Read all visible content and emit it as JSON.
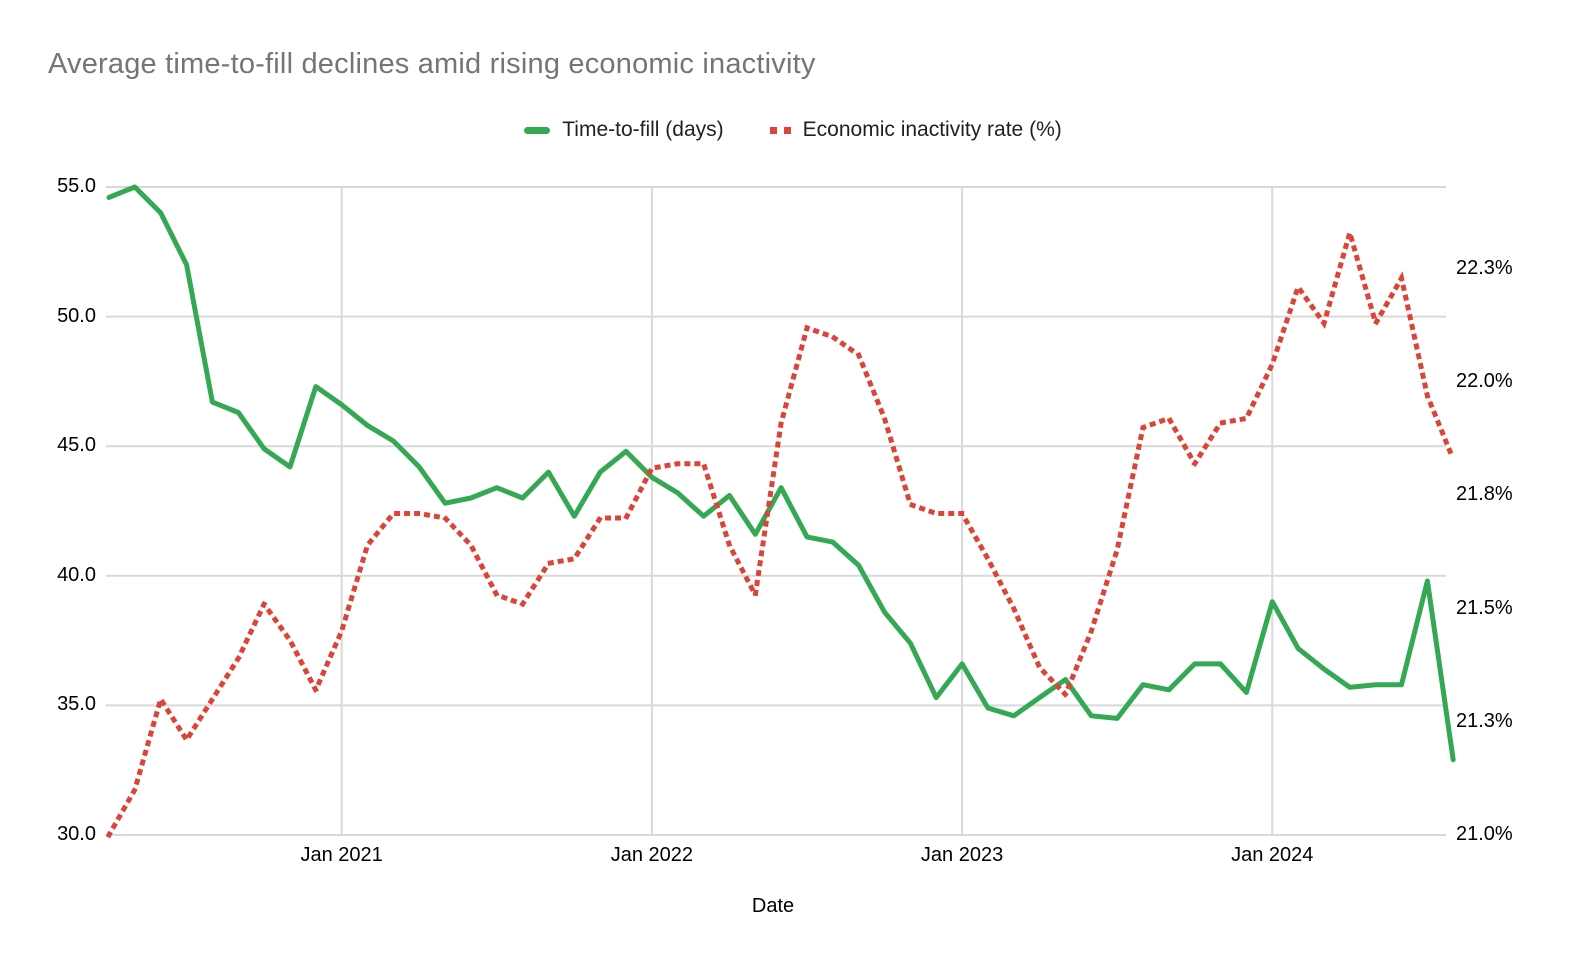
{
  "title": "Average time-to-fill declines amid rising economic inactivity",
  "legend": [
    {
      "label": "Time-to-fill (days)",
      "style": "solid",
      "color": "#34A853"
    },
    {
      "label": "Economic inactivity rate (%)",
      "style": "dotted",
      "color": "#DB4437"
    }
  ],
  "x_axis": {
    "title": "Date",
    "tick_labels": [
      "Jan 2021",
      "Jan 2022",
      "Jan 2023",
      "Jan 2024"
    ]
  },
  "left_axis": {
    "tick_labels": [
      "55.0",
      "50.0",
      "45.0",
      "40.0",
      "35.0",
      "30.0"
    ],
    "tick_values": [
      55.0,
      50.0,
      45.0,
      40.0,
      35.0,
      30.0
    ],
    "min": 30.0,
    "max": 55.0
  },
  "right_axis": {
    "tick_labels": [
      "22.3%",
      "22.0%",
      "21.8%",
      "21.5%",
      "21.3%",
      "21.0%"
    ],
    "tick_values": [
      22.25,
      22.0,
      21.75,
      21.5,
      21.25,
      21.0
    ],
    "min": 21.0,
    "max": 22.43
  },
  "colors": {
    "background": "#ffffff",
    "title_text": "#757575",
    "axis_text": "#000000",
    "gridline": "#d9d9d9",
    "series_green": "#34A853",
    "series_red": "#DB4437"
  },
  "chart_data": {
    "type": "line",
    "title": "Average time-to-fill declines amid rising economic inactivity",
    "xlabel": "Date",
    "x_tick_labels": [
      "Jan 2021",
      "Jan 2022",
      "Jan 2023",
      "Jan 2024"
    ],
    "ylim_left": [
      30.0,
      55.0
    ],
    "ylim_right": [
      21.0,
      22.43
    ],
    "grid": true,
    "legend_position": "top",
    "x": [
      "Apr 2020",
      "May 2020",
      "Jun 2020",
      "Jul 2020",
      "Aug 2020",
      "Sep 2020",
      "Oct 2020",
      "Nov 2020",
      "Dec 2020",
      "Jan 2021",
      "Feb 2021",
      "Mar 2021",
      "Apr 2021",
      "May 2021",
      "Jun 2021",
      "Jul 2021",
      "Aug 2021",
      "Sep 2021",
      "Oct 2021",
      "Nov 2021",
      "Dec 2021",
      "Jan 2022",
      "Feb 2022",
      "Mar 2022",
      "Apr 2022",
      "May 2022",
      "Jun 2022",
      "Jul 2022",
      "Aug 2022",
      "Sep 2022",
      "Oct 2022",
      "Nov 2022",
      "Dec 2022",
      "Jan 2023",
      "Feb 2023",
      "Mar 2023",
      "Apr 2023",
      "May 2023",
      "Jun 2023",
      "Jul 2023",
      "Aug 2023",
      "Sep 2023",
      "Oct 2023",
      "Nov 2023",
      "Dec 2023",
      "Jan 2024",
      "Feb 2024",
      "Mar 2024",
      "Apr 2024",
      "May 2024",
      "Jun 2024",
      "Jul 2024",
      "Aug 2024"
    ],
    "series": [
      {
        "name": "Time-to-fill (days)",
        "axis": "left",
        "color": "#34A853",
        "line_style": "solid",
        "values": [
          54.6,
          55.0,
          54.0,
          52.0,
          46.7,
          46.3,
          44.9,
          44.2,
          47.3,
          46.6,
          45.8,
          45.2,
          44.2,
          42.8,
          43.0,
          43.4,
          43.0,
          44.0,
          42.3,
          44.0,
          44.8,
          43.8,
          43.2,
          42.3,
          43.1,
          41.6,
          43.4,
          41.5,
          41.3,
          40.4,
          38.6,
          37.4,
          35.3,
          36.6,
          34.9,
          34.6,
          35.3,
          36.0,
          34.6,
          34.5,
          35.8,
          35.6,
          36.6,
          36.6,
          35.5,
          39.0,
          37.2,
          36.4,
          35.7,
          35.8,
          35.8,
          39.8,
          32.9
        ]
      },
      {
        "name": "Economic inactivity rate (%)",
        "axis": "right",
        "color": "#DB4437",
        "line_style": "dotted",
        "values": [
          21.0,
          21.1,
          21.3,
          21.21,
          21.3,
          21.39,
          21.51,
          21.43,
          21.32,
          21.45,
          21.64,
          21.71,
          21.71,
          21.7,
          21.64,
          21.53,
          21.51,
          21.6,
          21.61,
          21.7,
          21.7,
          21.81,
          21.82,
          21.82,
          21.64,
          21.53,
          21.91,
          22.12,
          22.1,
          22.06,
          21.92,
          21.73,
          21.71,
          21.71,
          21.61,
          21.5,
          21.37,
          21.31,
          21.45,
          21.63,
          21.9,
          21.92,
          21.82,
          21.91,
          21.92,
          22.04,
          22.21,
          22.13,
          22.33,
          22.13,
          22.23,
          21.97,
          21.83
        ]
      }
    ]
  }
}
